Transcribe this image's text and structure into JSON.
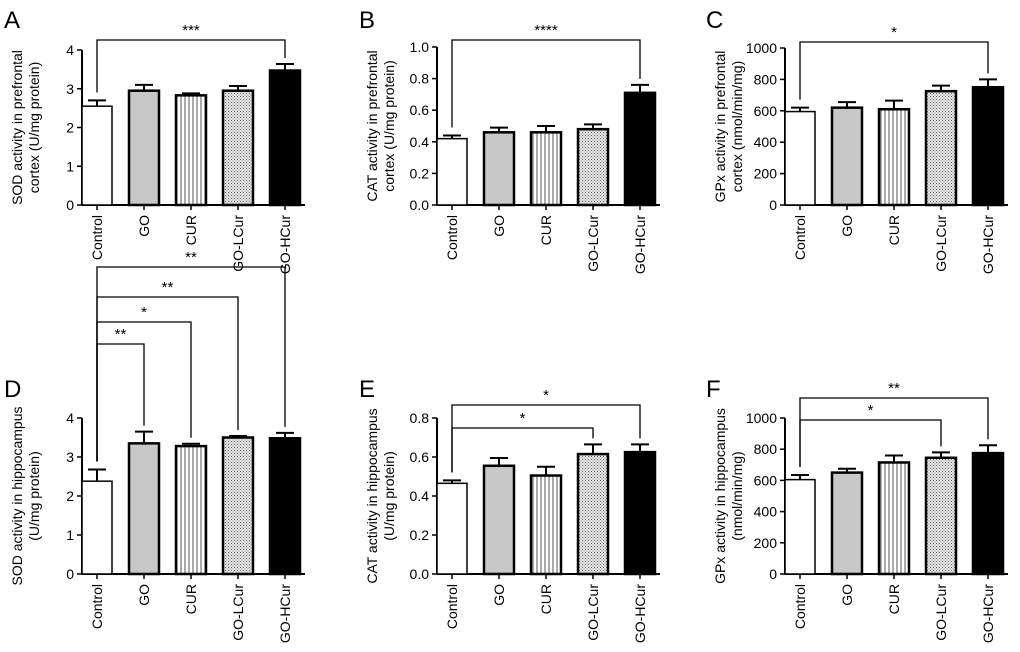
{
  "chart_data": [
    {
      "type": "bar",
      "panel": "A",
      "ylabel": [
        "SOD activity in prefrontal",
        "cortex (U/mg protein)"
      ],
      "ylim": [
        0,
        4
      ],
      "yticks": [
        "0",
        "1",
        "2",
        "3",
        "4"
      ],
      "categories": [
        "Control",
        "GO",
        "CUR",
        "GO-LCur",
        "GO-HCur"
      ],
      "values": [
        2.55,
        2.95,
        2.83,
        2.95,
        3.47
      ],
      "errors": [
        0.15,
        0.15,
        0.05,
        0.12,
        0.17
      ],
      "significance": [
        {
          "from": "Control",
          "to": "GO-HCur",
          "label": "***"
        }
      ]
    },
    {
      "type": "bar",
      "panel": "B",
      "ylabel": [
        "CAT activity in prefrontal",
        "cortex (U/mg protein)"
      ],
      "ylim": [
        0,
        1
      ],
      "yticks": [
        "0.0",
        "0.2",
        "0.4",
        "0.6",
        "0.8",
        "1.0"
      ],
      "categories": [
        "Control",
        "GO",
        "CUR",
        "GO-LCur",
        "GO-HCur"
      ],
      "values": [
        0.42,
        0.46,
        0.46,
        0.48,
        0.71
      ],
      "errors": [
        0.02,
        0.03,
        0.04,
        0.03,
        0.05
      ],
      "significance": [
        {
          "from": "Control",
          "to": "GO-HCur",
          "label": "****"
        }
      ]
    },
    {
      "type": "bar",
      "panel": "C",
      "ylabel": [
        "GPx activity in prefrontal",
        "cortex (nmol/min/mg)"
      ],
      "ylim": [
        0,
        1000
      ],
      "yticks": [
        "0",
        "200",
        "400",
        "600",
        "800",
        "1000"
      ],
      "categories": [
        "Control",
        "GO",
        "CUR",
        "GO-LCur",
        "GO-HCur"
      ],
      "values": [
        595,
        620,
        610,
        725,
        750
      ],
      "errors": [
        25,
        35,
        55,
        35,
        50
      ],
      "significance": [
        {
          "from": "Control",
          "to": "GO-HCur",
          "label": "*"
        }
      ]
    },
    {
      "type": "bar",
      "panel": "D",
      "ylabel": [
        "SOD activity in hippocampus",
        "(U/mg protein)"
      ],
      "ylim": [
        0,
        4
      ],
      "yticks": [
        "0",
        "1",
        "2",
        "3",
        "4"
      ],
      "categories": [
        "Control",
        "GO",
        "CUR",
        "GO-LCur",
        "GO-HCur"
      ],
      "values": [
        2.38,
        3.35,
        3.28,
        3.5,
        3.48
      ],
      "errors": [
        0.3,
        0.3,
        0.06,
        0.04,
        0.14
      ],
      "significance": [
        {
          "from": "Control",
          "to": "GO",
          "label": "**"
        },
        {
          "from": "Control",
          "to": "CUR",
          "label": "*"
        },
        {
          "from": "Control",
          "to": "GO-LCur",
          "label": "**"
        },
        {
          "from": "Control",
          "to": "GO-HCur",
          "label": "**"
        }
      ]
    },
    {
      "type": "bar",
      "panel": "E",
      "ylabel": [
        "CAT activity in hippocampus",
        "(U/mg protein)"
      ],
      "ylim": [
        0,
        0.8
      ],
      "yticks": [
        "0.0",
        "0.2",
        "0.4",
        "0.6",
        "0.8"
      ],
      "categories": [
        "Control",
        "GO",
        "CUR",
        "GO-LCur",
        "GO-HCur"
      ],
      "values": [
        0.465,
        0.555,
        0.505,
        0.615,
        0.625
      ],
      "errors": [
        0.015,
        0.04,
        0.045,
        0.05,
        0.04
      ],
      "significance": [
        {
          "from": "Control",
          "to": "GO-LCur",
          "label": "*"
        },
        {
          "from": "Control",
          "to": "GO-HCur",
          "label": "*"
        }
      ]
    },
    {
      "type": "bar",
      "panel": "F",
      "ylabel": [
        "GPx activity in hippocampus",
        "(nmol/min/mg)"
      ],
      "ylim": [
        0,
        1000
      ],
      "yticks": [
        "0",
        "200",
        "400",
        "600",
        "800",
        "1000"
      ],
      "categories": [
        "Control",
        "GO",
        "CUR",
        "GO-LCur",
        "GO-HCur"
      ],
      "values": [
        605,
        650,
        715,
        745,
        775
      ],
      "errors": [
        30,
        25,
        45,
        35,
        50
      ],
      "significance": [
        {
          "from": "Control",
          "to": "GO-LCur",
          "label": "*"
        },
        {
          "from": "Control",
          "to": "GO-HCur",
          "label": "**"
        }
      ]
    }
  ],
  "colors": {
    "control": "#ffffff",
    "go": "#c8c8c8",
    "cur": "#ffffff",
    "golcur": "#d8d8d8",
    "gohcur": "#000000"
  }
}
